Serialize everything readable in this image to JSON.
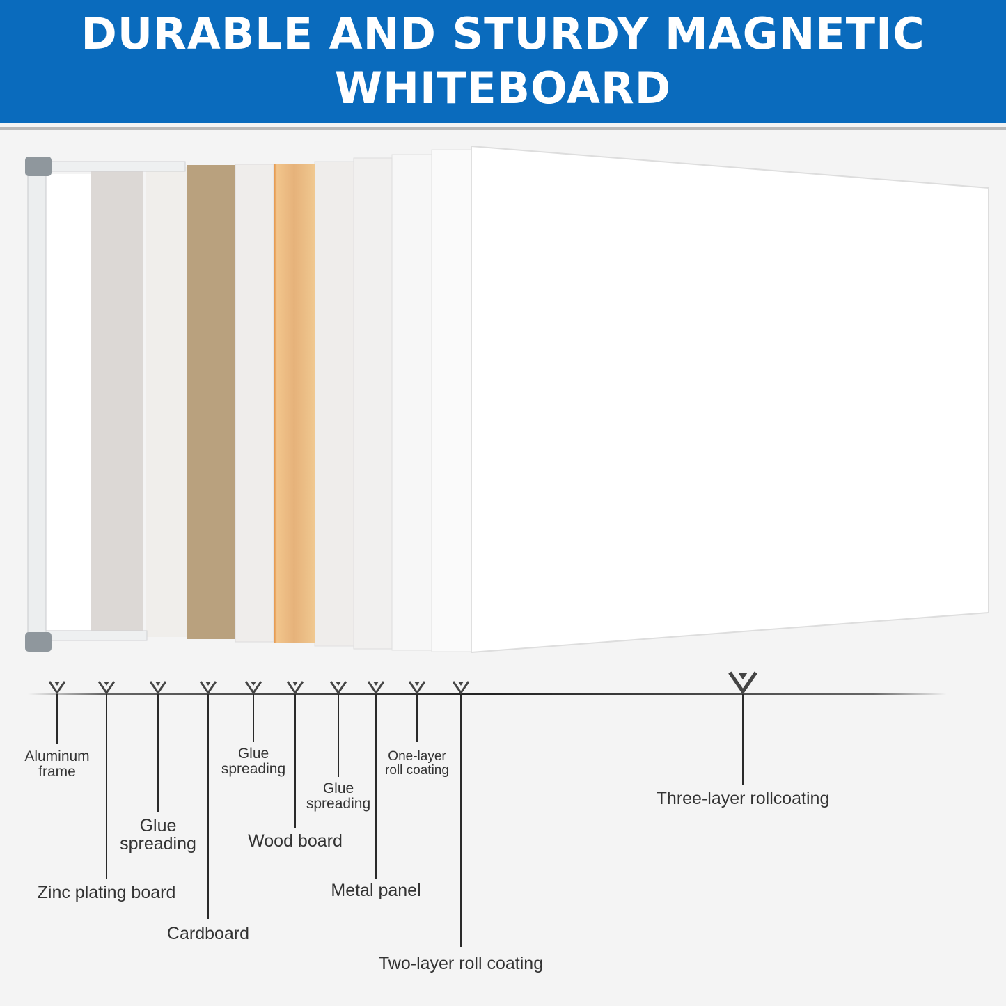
{
  "header": {
    "title_line1": "DURABLE AND STURDY MAGNETIC",
    "title_line2": "WHITEBOARD",
    "color": "#0a6bbd"
  },
  "layers": [
    {
      "label_line1": "Aluminum",
      "label_line2": "frame"
    },
    {
      "label_line1": "Zinc plating board"
    },
    {
      "label_line1": "Glue",
      "label_line2": "spreading"
    },
    {
      "label_line1": "Cardboard"
    },
    {
      "label_line1": "Glue",
      "label_line2": "spreading"
    },
    {
      "label_line1": "Wood board"
    },
    {
      "label_line1": "Glue",
      "label_line2": "spreading"
    },
    {
      "label_line1": "Metal panel"
    },
    {
      "label_line1": "One-layer",
      "label_line2": "roll coating"
    },
    {
      "label_line1": "Two-layer roll coating"
    },
    {
      "label_line1": "Three-layer rollcoating"
    }
  ],
  "colors": {
    "cardboard": "#b9a17e",
    "wood": "#e8b878",
    "frame_corner": "#8f979d"
  }
}
